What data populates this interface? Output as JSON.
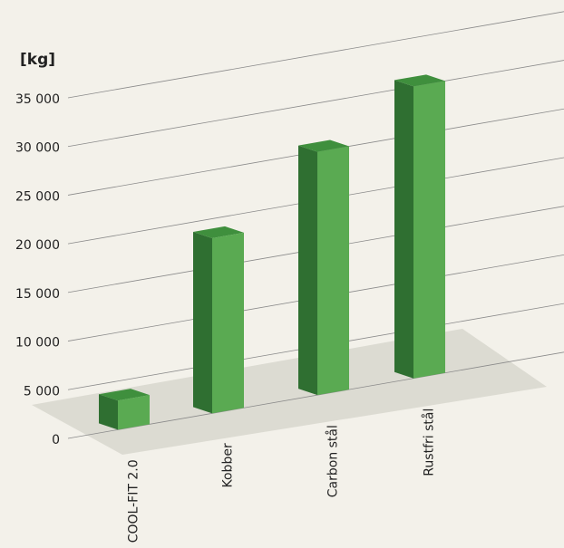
{
  "chart_data": {
    "type": "bar3d",
    "y_label": "[kg]",
    "categories": [
      "COOL-FIT 2.0",
      "Kobber",
      "Carbon stål",
      "Rustfri stål"
    ],
    "values": [
      3000,
      18000,
      25000,
      30000
    ],
    "color": "#5aaa52",
    "ylim": [
      0,
      35000
    ],
    "yticks": [
      0,
      {
        "value": 5000,
        "label": "5 000"
      },
      {
        "value": 10000,
        "label": "10 000"
      },
      {
        "value": 15000,
        "label": "15 000"
      },
      {
        "value": 20000,
        "label": "20 000"
      },
      {
        "value": 25000,
        "label": "25 000"
      },
      {
        "value": 30000,
        "label": "30 000"
      },
      {
        "value": 35000,
        "label": "35 000"
      }
    ],
    "grid": true
  }
}
